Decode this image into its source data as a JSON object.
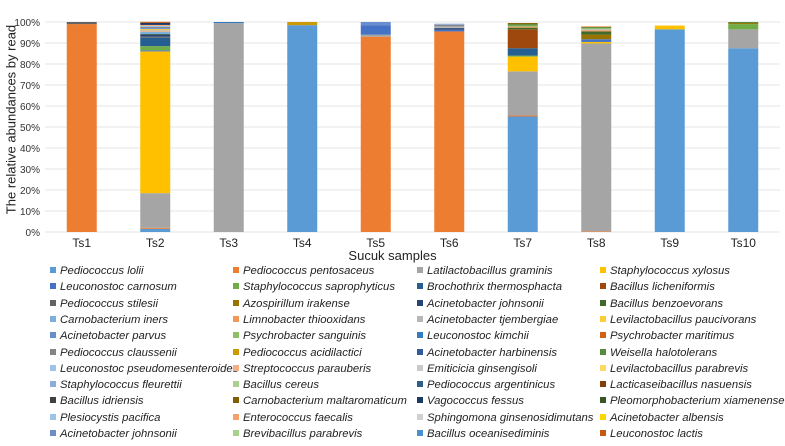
{
  "chart_data": {
    "type": "bar",
    "stacked": true,
    "title": "",
    "xlabel": "Sucuk samples",
    "ylabel": "The relative abundances by read",
    "ylim": [
      0,
      100
    ],
    "yticks": [
      "0%",
      "10%",
      "20%",
      "30%",
      "40%",
      "50%",
      "60%",
      "70%",
      "80%",
      "90%",
      "100%"
    ],
    "grid": true,
    "legend_position": "bottom",
    "categories": [
      "Ts1",
      "Ts2",
      "Ts3",
      "Ts4",
      "Ts5",
      "Ts6",
      "Ts7",
      "Ts8",
      "Ts9",
      "Ts10"
    ],
    "series": [
      {
        "name": "Pediococcus lolii",
        "color": "#5b9bd5",
        "values": [
          0,
          1.5,
          0,
          98.5,
          0,
          0,
          55,
          0,
          96.5,
          87.5
        ]
      },
      {
        "name": "Pediococcus pentosaceus",
        "color": "#ed7d31",
        "values": [
          99,
          0.5,
          0,
          0,
          93,
          95.5,
          0.5,
          0.3,
          0,
          0
        ]
      },
      {
        "name": "Latilactobacillus graminis",
        "color": "#a5a5a5",
        "values": [
          0,
          16.5,
          99.5,
          0,
          1,
          0,
          21,
          89.5,
          0,
          9
        ]
      },
      {
        "name": "Staphylococcus xylosus",
        "color": "#ffc000",
        "values": [
          0,
          67.5,
          0,
          0,
          0,
          0,
          7,
          0.7,
          1.8,
          0
        ]
      },
      {
        "name": "Leuconostoc carnosum",
        "color": "#4472c4",
        "values": [
          0,
          0.5,
          0,
          0,
          4.5,
          0.8,
          0,
          1.3,
          0,
          0
        ]
      },
      {
        "name": "Staphylococcus saprophyticus",
        "color": "#70ad47",
        "values": [
          0,
          2,
          0,
          0,
          0,
          0,
          0.5,
          0,
          0,
          2.5
        ]
      },
      {
        "name": "Brochothrix thermosphacta",
        "color": "#255e91",
        "values": [
          0,
          4,
          0,
          0,
          0,
          0,
          3.5,
          0,
          0,
          0
        ]
      },
      {
        "name": "Bacillus licheniformis",
        "color": "#9e480e",
        "values": [
          0,
          0,
          0,
          0,
          0,
          0,
          9,
          0,
          0,
          0
        ]
      },
      {
        "name": "Pediococcus stilesii",
        "color": "#636363",
        "values": [
          1,
          0.5,
          0,
          0,
          0,
          0,
          0,
          0,
          0,
          0
        ]
      },
      {
        "name": "Azospirillum irakense",
        "color": "#997300",
        "values": [
          0,
          0,
          0,
          0,
          0,
          0,
          0,
          2.2,
          0,
          0.5
        ]
      },
      {
        "name": "Acinetobacter johnsonii",
        "color": "#264478",
        "values": [
          0,
          1,
          0,
          0,
          0,
          0.8,
          0,
          0,
          0,
          0
        ]
      },
      {
        "name": "Bacillus benzoevorans",
        "color": "#43682b",
        "values": [
          0,
          0.3,
          0,
          0,
          0,
          0,
          0.8,
          1.5,
          0,
          0
        ]
      },
      {
        "name": "Carnobacterium iners",
        "color": "#7cafdd",
        "values": [
          0,
          1,
          0,
          0,
          0,
          0,
          0,
          0,
          0,
          0
        ]
      },
      {
        "name": "Limnobacter thiooxidans",
        "color": "#f1975a",
        "values": [
          0,
          0.3,
          0,
          0,
          0,
          0,
          0.5,
          0.6,
          0,
          0
        ]
      },
      {
        "name": "Acinetobacter tjembergiae",
        "color": "#b7b7b7",
        "values": [
          0,
          0.5,
          0,
          0,
          0,
          0.8,
          0,
          0.5,
          0,
          0
        ]
      },
      {
        "name": "Levilactobacillus paucivorans",
        "color": "#ffcd33",
        "values": [
          0,
          0.5,
          0,
          0,
          0,
          0,
          0,
          0,
          0,
          0
        ]
      },
      {
        "name": "Acinetobacter parvus",
        "color": "#698ed0",
        "values": [
          0,
          0.5,
          0,
          0,
          1.5,
          0,
          0,
          0,
          0,
          0
        ]
      },
      {
        "name": "Psychrobacter sanguinis",
        "color": "#8cc168",
        "values": [
          0,
          0,
          0,
          0,
          0,
          0,
          0.5,
          0.5,
          0,
          0
        ]
      },
      {
        "name": "Leuconostoc kimchii",
        "color": "#327dc2",
        "values": [
          0,
          0,
          0.5,
          0,
          0,
          0,
          0,
          0,
          0,
          0
        ]
      },
      {
        "name": "Psychrobacter maritimus",
        "color": "#d26012",
        "values": [
          0,
          0,
          0,
          0,
          0,
          0,
          0,
          0,
          0,
          0
        ]
      },
      {
        "name": "Pediococcus claussenii",
        "color": "#848484",
        "values": [
          0,
          0.5,
          0,
          0,
          0,
          0.8,
          0,
          0,
          0,
          0
        ]
      },
      {
        "name": "Pediococcus acidilactici",
        "color": "#cc9a06",
        "values": [
          0,
          0,
          0,
          1.5,
          0,
          0,
          0,
          0,
          0,
          0
        ]
      },
      {
        "name": "Acinetobacter harbinensis",
        "color": "#335aa1",
        "values": [
          0,
          0,
          0,
          0,
          0,
          0,
          0,
          0,
          0,
          0
        ]
      },
      {
        "name": "Weisella halotolerans",
        "color": "#5a8a39",
        "values": [
          0,
          0,
          0,
          0,
          0,
          0,
          0.7,
          0.5,
          0,
          0.5
        ]
      },
      {
        "name": "Leuconostoc pseudomesenteroides",
        "color": "#9dc3e6",
        "values": [
          0,
          0.5,
          0,
          0,
          0,
          0,
          0,
          0,
          0,
          0
        ]
      },
      {
        "name": "Streptococcus parauberis",
        "color": "#f4b183",
        "values": [
          0,
          0.5,
          0,
          0,
          0,
          0,
          0,
          0.5,
          0,
          0
        ]
      },
      {
        "name": "Emiticicia ginsengisoli",
        "color": "#c9c9c9",
        "values": [
          0,
          0,
          0,
          0,
          0,
          0,
          0,
          0,
          0,
          0
        ]
      },
      {
        "name": "Levilactobacillus parabrevis",
        "color": "#ffd966",
        "values": [
          0,
          0,
          0,
          0,
          0,
          0,
          0,
          0,
          0,
          0
        ]
      },
      {
        "name": "Staphylococcus fleurettii",
        "color": "#8faadc",
        "values": [
          0,
          0,
          0,
          0,
          0,
          0.5,
          0,
          0,
          0,
          0
        ]
      },
      {
        "name": "Bacillus cereus",
        "color": "#a9d18e",
        "values": [
          0,
          0,
          0,
          0,
          0,
          0,
          0,
          0,
          0,
          0
        ]
      },
      {
        "name": "Pediococcus argentinicus",
        "color": "#2e5e8a",
        "values": [
          0,
          0,
          0,
          0,
          0,
          0,
          0,
          0,
          0,
          0
        ]
      },
      {
        "name": "Lacticaseibacillus nasuensis",
        "color": "#843c0c",
        "values": [
          0,
          0,
          0,
          0,
          0,
          0,
          0,
          0,
          0,
          0
        ]
      },
      {
        "name": "Bacillus idriensis",
        "color": "#404040",
        "values": [
          0,
          0,
          0,
          0,
          0,
          0,
          0,
          0,
          0,
          0
        ]
      },
      {
        "name": "Carnobacterium maltaromaticum",
        "color": "#7f6000",
        "values": [
          0,
          0,
          0,
          0,
          0,
          0,
          0.5,
          0,
          0,
          0
        ]
      },
      {
        "name": "Vagococcus fessus",
        "color": "#203864",
        "values": [
          0,
          1,
          0,
          0,
          0,
          0,
          0,
          0,
          0,
          0
        ]
      },
      {
        "name": "Pleomorphobacterium xiamenense",
        "color": "#385723",
        "values": [
          0,
          0,
          0,
          0,
          0,
          0,
          0,
          0,
          0,
          0
        ]
      },
      {
        "name": "Plesiocystis pacifica",
        "color": "#9dc3e6",
        "values": [
          0,
          0,
          0,
          0,
          0,
          0,
          0,
          0,
          0,
          0
        ]
      },
      {
        "name": "Enterococcus faecalis",
        "color": "#f4a06a",
        "values": [
          0,
          0,
          0,
          0,
          0,
          0,
          0,
          0,
          0,
          0
        ]
      },
      {
        "name": "Sphingomona ginsenosidimutans",
        "color": "#d0d0d0",
        "values": [
          0,
          0,
          0,
          0,
          0,
          0,
          0,
          0,
          0,
          0
        ]
      },
      {
        "name": "Acinetobacter albensis",
        "color": "#ffd500",
        "values": [
          0,
          0,
          0,
          0,
          0,
          0,
          0,
          0,
          0,
          0
        ]
      },
      {
        "name": "Acinetobacter johnsonii",
        "color": "#6f8dc4",
        "values": [
          0,
          0,
          0,
          0,
          0,
          0,
          0,
          0,
          0,
          0
        ]
      },
      {
        "name": "Brevibacillus parabrevis",
        "color": "#a9d18e",
        "values": [
          0,
          0,
          0,
          0,
          0,
          0,
          0,
          0,
          0,
          0
        ]
      },
      {
        "name": "Bacillus oceanisediminis",
        "color": "#4a90d0",
        "values": [
          0,
          0,
          0,
          0,
          0,
          0,
          0,
          0,
          0,
          0
        ]
      },
      {
        "name": "Leuconostoc lactis",
        "color": "#c55a11",
        "values": [
          0,
          0.5,
          0,
          0,
          0,
          0,
          0,
          0,
          0,
          0
        ]
      }
    ]
  }
}
